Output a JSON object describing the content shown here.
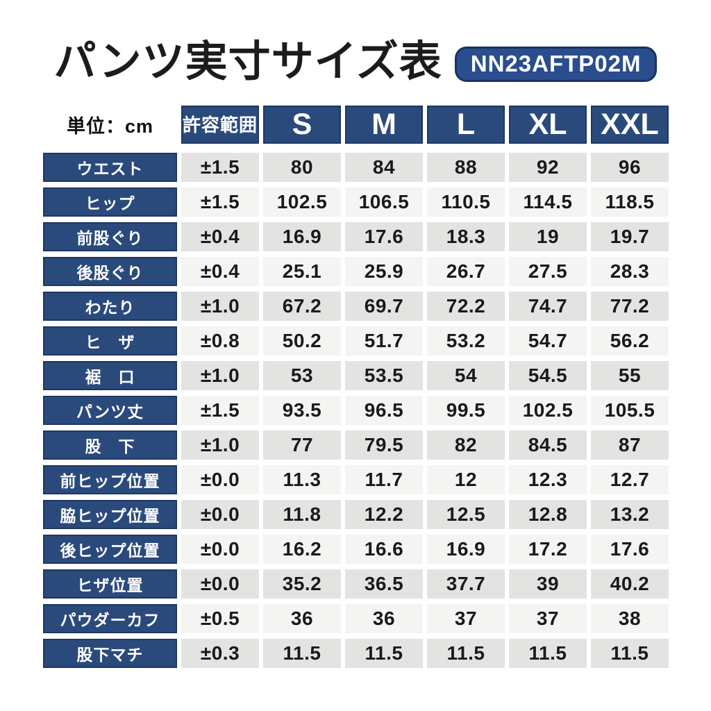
{
  "colors": {
    "navy": "#2b4a7c",
    "navy_border": "#1d3763",
    "badge_bg": "#2a4d8e",
    "badge_border": "#17335f",
    "row_odd_bg": "#e3e3e1",
    "row_even_bg": "#f4f4f2",
    "white": "#ffffff"
  },
  "chart_data": {
    "type": "table",
    "title": "パンツ実寸サイズ表",
    "product_code": "NN23AFTP02M",
    "unit": "単位：cm",
    "columns": [
      "許容範囲",
      "S",
      "M",
      "L",
      "XL",
      "XXL"
    ],
    "rows": [
      {
        "label": "ウエスト",
        "tolerance": "±1.5",
        "values": [
          "80",
          "84",
          "88",
          "92",
          "96"
        ]
      },
      {
        "label": "ヒップ",
        "tolerance": "±1.5",
        "values": [
          "102.5",
          "106.5",
          "110.5",
          "114.5",
          "118.5"
        ]
      },
      {
        "label": "前股ぐり",
        "tolerance": "±0.4",
        "values": [
          "16.9",
          "17.6",
          "18.3",
          "19",
          "19.7"
        ]
      },
      {
        "label": "後股ぐり",
        "tolerance": "±0.4",
        "values": [
          "25.1",
          "25.9",
          "26.7",
          "27.5",
          "28.3"
        ]
      },
      {
        "label": "わたり",
        "tolerance": "±1.0",
        "values": [
          "67.2",
          "69.7",
          "72.2",
          "74.7",
          "77.2"
        ]
      },
      {
        "label": "ヒ　ザ",
        "tolerance": "±0.8",
        "values": [
          "50.2",
          "51.7",
          "53.2",
          "54.7",
          "56.2"
        ]
      },
      {
        "label": "裾　口",
        "tolerance": "±1.0",
        "values": [
          "53",
          "53.5",
          "54",
          "54.5",
          "55"
        ]
      },
      {
        "label": "パンツ丈",
        "tolerance": "±1.5",
        "values": [
          "93.5",
          "96.5",
          "99.5",
          "102.5",
          "105.5"
        ]
      },
      {
        "label": "股　下",
        "tolerance": "±1.0",
        "values": [
          "77",
          "79.5",
          "82",
          "84.5",
          "87"
        ]
      },
      {
        "label": "前ヒップ位置",
        "tolerance": "±0.0",
        "values": [
          "11.3",
          "11.7",
          "12",
          "12.3",
          "12.7"
        ]
      },
      {
        "label": "脇ヒップ位置",
        "tolerance": "±0.0",
        "values": [
          "11.8",
          "12.2",
          "12.5",
          "12.8",
          "13.2"
        ]
      },
      {
        "label": "後ヒップ位置",
        "tolerance": "±0.0",
        "values": [
          "16.2",
          "16.6",
          "16.9",
          "17.2",
          "17.6"
        ]
      },
      {
        "label": "ヒザ位置",
        "tolerance": "±0.0",
        "values": [
          "35.2",
          "36.5",
          "37.7",
          "39",
          "40.2"
        ]
      },
      {
        "label": "パウダーカフ",
        "tolerance": "±0.5",
        "values": [
          "36",
          "36",
          "37",
          "37",
          "38"
        ]
      },
      {
        "label": "股下マチ",
        "tolerance": "±0.3",
        "values": [
          "11.5",
          "11.5",
          "11.5",
          "11.5",
          "11.5"
        ]
      }
    ]
  }
}
